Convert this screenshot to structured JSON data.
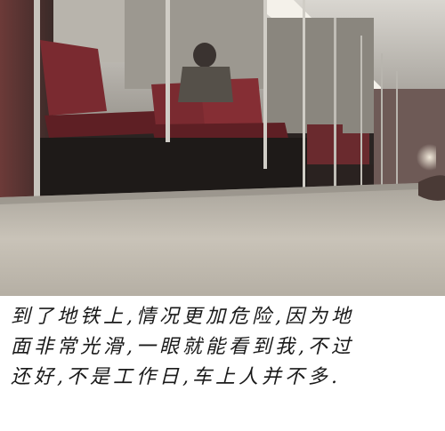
{
  "caption": {
    "line1": "到了地铁上,情况更加危险,因为地",
    "line2": "面非常光滑,一眼就能看到我,不过",
    "line3": "还好,不是工作日,车上人并不多."
  },
  "photo": {
    "subject": "subway car interior",
    "seat_color": "#7a2a30",
    "floor_color": "#c9c3b8",
    "wall_color": "#8c8a86"
  }
}
